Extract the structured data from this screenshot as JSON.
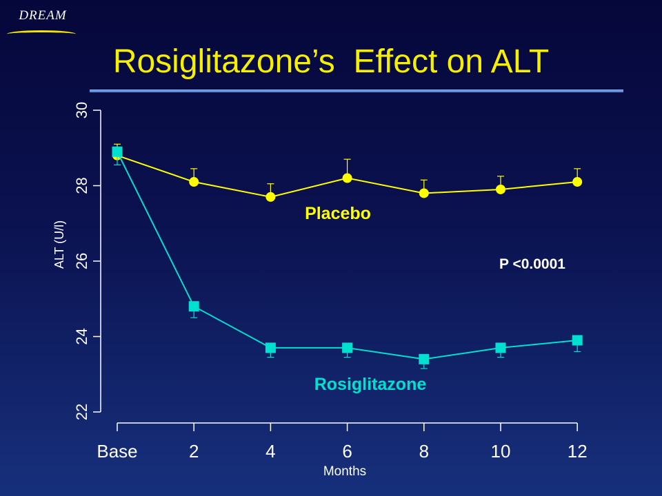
{
  "brand": {
    "text": "DREAM"
  },
  "slide": {
    "title": "Rosiglitazone’s  Effect on ALT"
  },
  "chart_data": {
    "type": "line",
    "categories": [
      "Base",
      "2",
      "4",
      "6",
      "8",
      "10",
      "12"
    ],
    "xlabel": "Months",
    "ylabel": "ALT (U/l)",
    "ylim": [
      22,
      30
    ],
    "yticks": [
      "22",
      "24",
      "26",
      "28",
      "30"
    ],
    "grid": false,
    "series": [
      {
        "name": "Placebo",
        "color": "#ffff00",
        "marker": "circle",
        "values": [
          28.8,
          28.1,
          27.7,
          28.2,
          27.8,
          27.9,
          28.1
        ],
        "error_upper": [
          29.1,
          28.45,
          28.05,
          28.7,
          28.15,
          28.25,
          28.45
        ]
      },
      {
        "name": "Rosiglitazone",
        "color": "#00e0d0",
        "marker": "square",
        "values": [
          28.9,
          24.8,
          23.7,
          23.7,
          23.4,
          23.7,
          23.9
        ],
        "error_lower": [
          28.55,
          24.5,
          23.45,
          23.45,
          23.15,
          23.45,
          23.6
        ]
      }
    ],
    "annotations": [
      "P <0.0001"
    ]
  }
}
